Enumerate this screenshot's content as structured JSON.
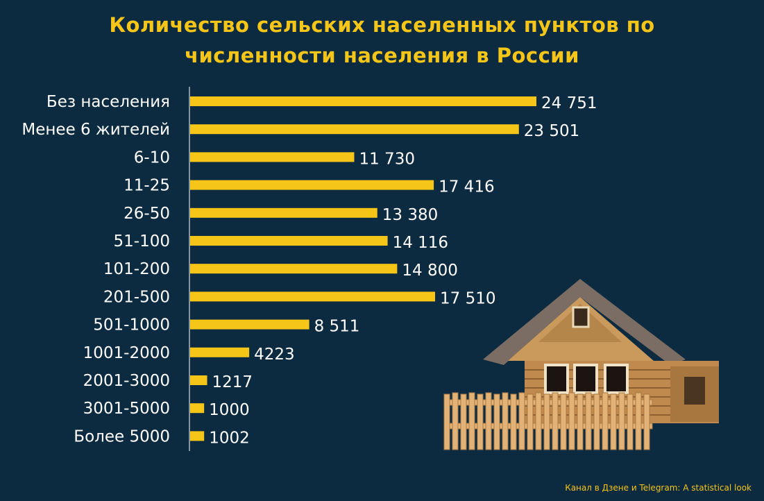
{
  "colors": {
    "background": "#0d2b40",
    "bar": "#f5c518",
    "title": "#f5c518",
    "label": "#ffffff",
    "axis": "#ffffff"
  },
  "header": {
    "title_line1": "Количество сельских населенных пунктов по",
    "title_line2": "численности населения в России"
  },
  "footer": {
    "credit": "Канал в Дзене и Telegram: A statistical look"
  },
  "illustration": {
    "icon": "wooden-house-icon"
  },
  "chart_data": {
    "type": "bar",
    "orientation": "horizontal",
    "title": "Количество сельских населенных пунктов по численности населения в России",
    "categories": [
      "Без населения",
      "Менее 6 жителей",
      "6-10",
      "11-25",
      "26-50",
      "51-100",
      "101-200",
      "201-500",
      "501-1000",
      "1001-2000",
      "2001-3000",
      "3001-5000",
      "Более 5000"
    ],
    "values": [
      24751,
      23501,
      11730,
      17416,
      13380,
      14116,
      14800,
      17510,
      8511,
      4223,
      1217,
      1000,
      1002
    ],
    "value_labels": [
      "24 751",
      "23 501",
      "11 730",
      "17 416",
      "13 380",
      "14 116",
      "14 800",
      "17 510",
      "8 511",
      "4223",
      "1217",
      "1000",
      "1002"
    ],
    "xlim": [
      0,
      24751
    ],
    "grid": false,
    "legend": "none"
  }
}
